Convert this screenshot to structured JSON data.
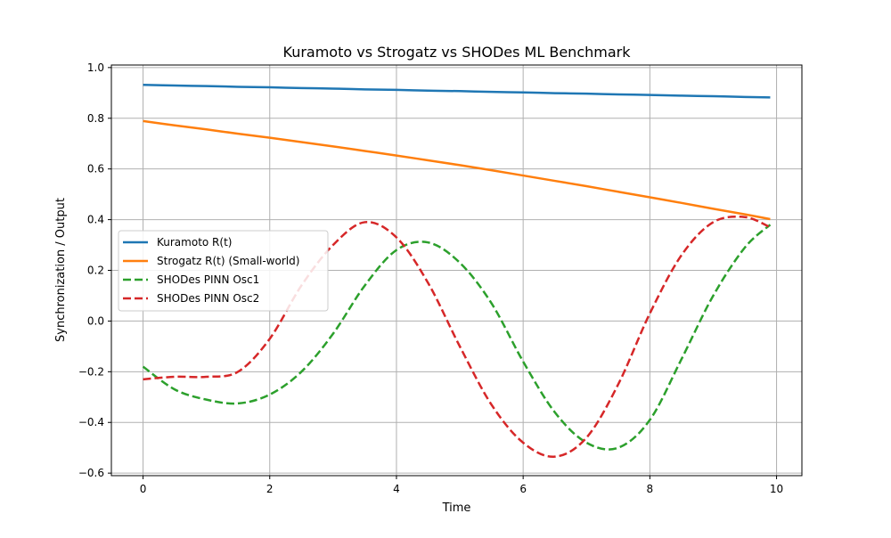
{
  "chart_data": {
    "type": "line",
    "title": "Kuramoto vs Strogatz vs SHODes ML Benchmark",
    "xlabel": "Time",
    "ylabel": "Synchronization / Output",
    "xlim": [
      -0.5,
      10.4
    ],
    "ylim": [
      -0.61,
      1.01
    ],
    "xticks": [
      0,
      2,
      4,
      6,
      8,
      10
    ],
    "xtick_labels": [
      "0",
      "2",
      "4",
      "6",
      "8",
      "10"
    ],
    "yticks": [
      -0.6,
      -0.4,
      -0.2,
      0.0,
      0.2,
      0.4,
      0.6,
      0.8,
      1.0
    ],
    "ytick_labels": [
      "−0.6",
      "−0.4",
      "−0.2",
      "0.0",
      "0.2",
      "0.4",
      "0.6",
      "0.8",
      "1.0"
    ],
    "grid": true,
    "legend_position": "center-left",
    "x": [
      0.0,
      0.5,
      1.0,
      1.5,
      2.0,
      2.5,
      3.0,
      3.5,
      4.0,
      4.5,
      5.0,
      5.5,
      6.0,
      6.5,
      7.0,
      7.5,
      8.0,
      8.5,
      9.0,
      9.5,
      9.9
    ],
    "series": [
      {
        "name": "Kuramoto R(t)",
        "color": "#1f77b4",
        "style": "solid",
        "values": [
          0.932,
          0.929,
          0.927,
          0.924,
          0.922,
          0.919,
          0.917,
          0.914,
          0.912,
          0.909,
          0.907,
          0.904,
          0.902,
          0.899,
          0.897,
          0.894,
          0.892,
          0.889,
          0.887,
          0.884,
          0.882
        ]
      },
      {
        "name": "Strogatz R(t) (Small-world)",
        "color": "#ff7f0e",
        "style": "solid",
        "values": [
          0.789,
          0.772,
          0.756,
          0.739,
          0.723,
          0.706,
          0.689,
          0.671,
          0.653,
          0.634,
          0.615,
          0.595,
          0.574,
          0.553,
          0.532,
          0.51,
          0.488,
          0.466,
          0.443,
          0.421,
          0.402
        ]
      },
      {
        "name": "SHODes PINN Osc1",
        "color": "#2ca02c",
        "style": "dashed",
        "values": [
          -0.18,
          -0.27,
          -0.31,
          -0.325,
          -0.29,
          -0.2,
          -0.05,
          0.14,
          0.28,
          0.31,
          0.23,
          0.07,
          -0.16,
          -0.36,
          -0.48,
          -0.5,
          -0.39,
          -0.15,
          0.1,
          0.29,
          0.38
        ]
      },
      {
        "name": "SHODes PINN Osc2",
        "color": "#d62728",
        "style": "dashed",
        "values": [
          -0.23,
          -0.22,
          -0.22,
          -0.2,
          -0.07,
          0.14,
          0.3,
          0.39,
          0.33,
          0.15,
          -0.1,
          -0.33,
          -0.48,
          -0.535,
          -0.46,
          -0.25,
          0.03,
          0.26,
          0.39,
          0.41,
          0.37
        ]
      }
    ]
  }
}
